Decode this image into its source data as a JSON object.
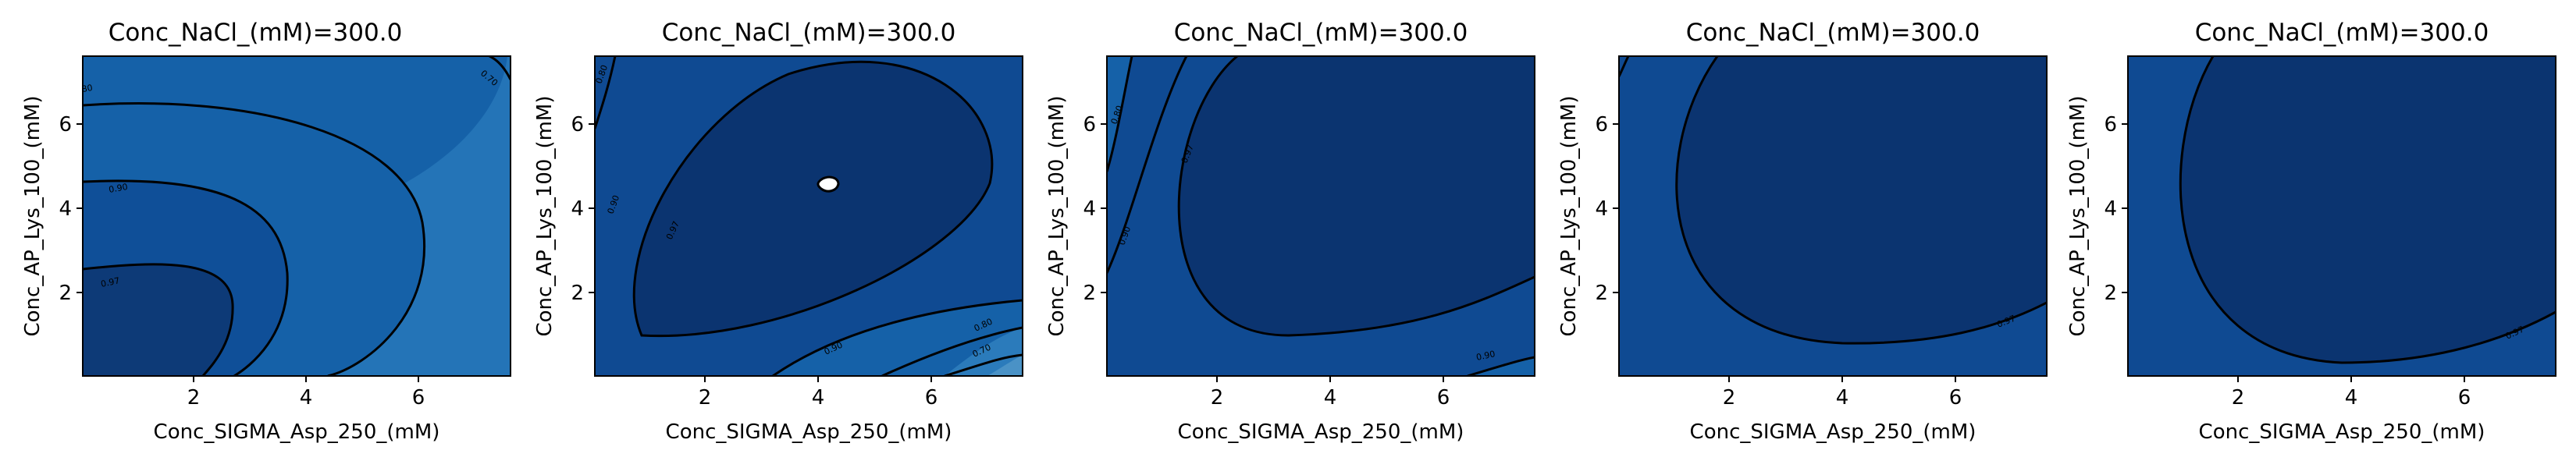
{
  "chart_data": [
    {
      "type": "contour",
      "title": "Conc_NaCl_(mM)=300.0",
      "xlabel": "Conc_SIGMA_Asp_250_(mM)",
      "ylabel": "Conc_AP_Lys_100_(mM)",
      "xlim": [
        0.1,
        7.7
      ],
      "ylim": [
        0.1,
        7.7
      ],
      "xticks": [
        "2",
        "4",
        "6"
      ],
      "yticks": [
        "2",
        "4",
        "6"
      ],
      "levels": [
        "0.70",
        "0.80",
        "0.90",
        "0.97"
      ],
      "colors": [
        "#0d3a77",
        "#0f4f98",
        "#1561a8",
        "#2474b7"
      ]
    },
    {
      "type": "contour",
      "title": "Conc_NaCl_(mM)=300.0",
      "xlabel": "Conc_SIGMA_Asp_250_(mM)",
      "ylabel": "Conc_AP_Lys_100_(mM)",
      "xlim": [
        0.1,
        7.7
      ],
      "ylim": [
        0.1,
        7.7
      ],
      "xticks": [
        "2",
        "4",
        "6"
      ],
      "yticks": [
        "2",
        "4",
        "6"
      ],
      "levels": [
        "0.70",
        "0.80",
        "0.90",
        "0.97"
      ],
      "colors": [
        "#ffffff",
        "#0b3470",
        "#0f4a92",
        "#1561a8",
        "#2b7bbb",
        "#4a92c6"
      ]
    },
    {
      "type": "contour",
      "title": "Conc_NaCl_(mM)=300.0",
      "xlabel": "Conc_SIGMA_Asp_250_(mM)",
      "ylabel": "Conc_AP_Lys_100_(mM)",
      "xlim": [
        0.1,
        7.7
      ],
      "ylim": [
        0.1,
        7.7
      ],
      "xticks": [
        "2",
        "4",
        "6"
      ],
      "yticks": [
        "2",
        "4",
        "6"
      ],
      "levels": [
        "0.80",
        "0.90",
        "0.97"
      ],
      "colors": [
        "#0b3470",
        "#0f4a92",
        "#1561a8"
      ]
    },
    {
      "type": "contour",
      "title": "Conc_NaCl_(mM)=300.0",
      "xlabel": "Conc_SIGMA_Asp_250_(mM)",
      "ylabel": "Conc_AP_Lys_100_(mM)",
      "xlim": [
        0.1,
        7.7
      ],
      "ylim": [
        0.1,
        7.7
      ],
      "xticks": [
        "2",
        "4",
        "6"
      ],
      "yticks": [
        "2",
        "4",
        "6"
      ],
      "levels": [
        "0.97"
      ],
      "colors": [
        "#0b3470",
        "#0f4a92"
      ]
    },
    {
      "type": "contour",
      "title": "Conc_NaCl_(mM)=300.0",
      "xlabel": "Conc_SIGMA_Asp_250_(mM)",
      "ylabel": "Conc_AP_Lys_100_(mM)",
      "xlim": [
        0.1,
        7.7
      ],
      "ylim": [
        0.1,
        7.7
      ],
      "xticks": [
        "2",
        "4",
        "6"
      ],
      "yticks": [
        "2",
        "4",
        "6"
      ],
      "levels": [
        "0.97"
      ],
      "colors": [
        "#0b3470",
        "#0f4a92"
      ]
    }
  ]
}
